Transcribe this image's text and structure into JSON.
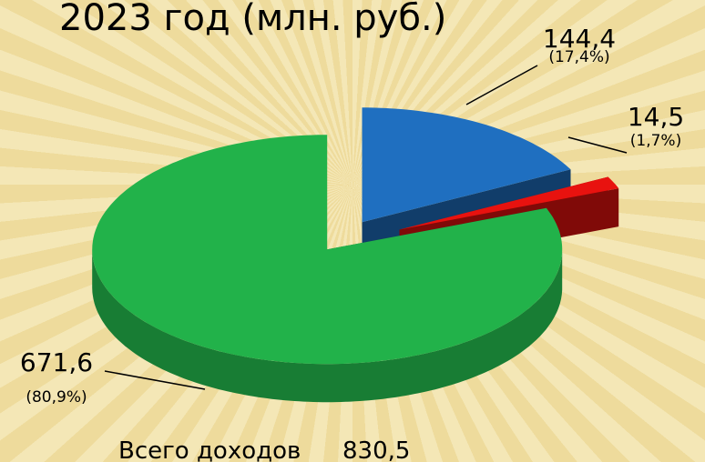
{
  "chart_data": {
    "type": "pie3d",
    "title": "2023 год (млн. руб.)",
    "categories": [
      null,
      null,
      null
    ],
    "values": [
      144.4,
      14.5,
      671.6
    ],
    "value_labels": [
      "144,4",
      "14,5",
      "671,6"
    ],
    "percents": [
      17.4,
      1.7,
      80.9
    ],
    "percent_labels": [
      "(17,4%)",
      "(1,7%)",
      "(80,9%)"
    ],
    "colors": [
      "#1f6fc0",
      "#e8120f",
      "#22b24a"
    ],
    "annotation": "Всего доходов",
    "total": 830.5,
    "total_label": "830,5"
  }
}
